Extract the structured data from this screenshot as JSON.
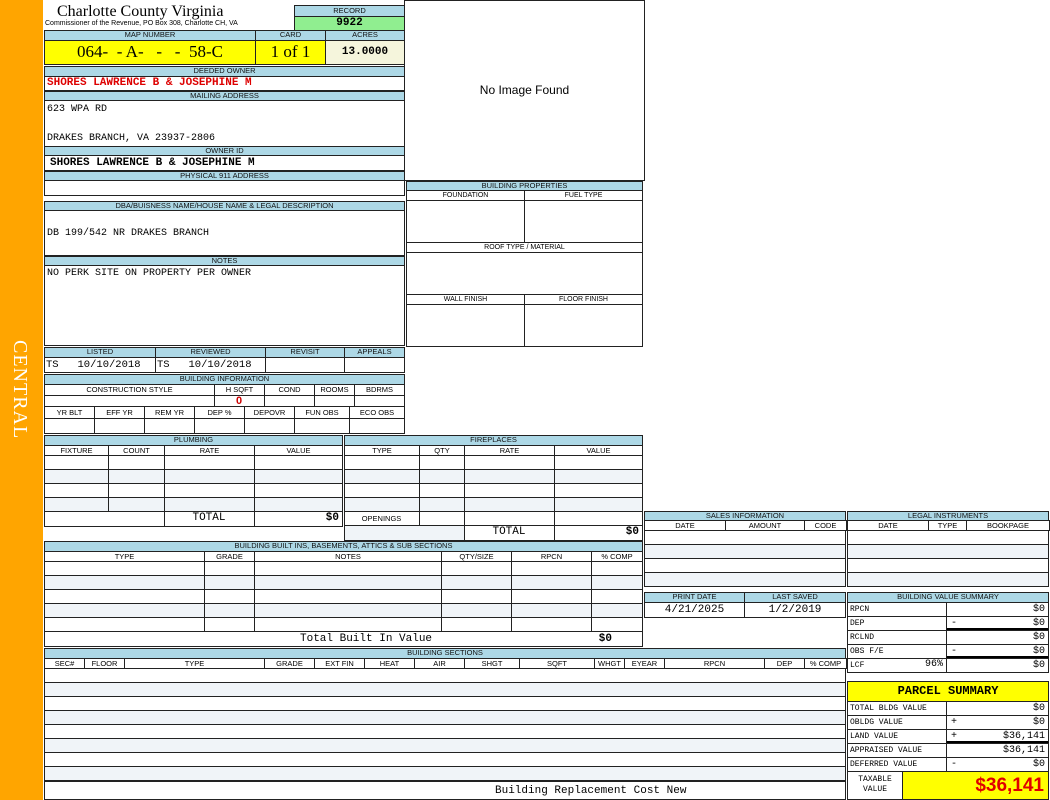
{
  "sidebar": {
    "label": "CENTRAL",
    "color": "#ffa500"
  },
  "header": {
    "title": "Charlotte County Virginia",
    "subtitle": "Commissioner of the Revenue, PO Box 308, Charlotte CH, VA"
  },
  "record": {
    "label": "RECORD",
    "value": "9922"
  },
  "photo": {
    "text": "No Image Found"
  },
  "map": {
    "label": "MAP NUMBER",
    "value": "064-  - A-   -   -  58-C",
    "card_label": "CARD",
    "card": "1 of 1",
    "acres_label": "ACRES",
    "acres": "13.0000"
  },
  "owner": {
    "deeded_label": "DEEDED OWNER",
    "deeded": "SHORES LAWRENCE B & JOSEPHINE M",
    "mailing_label": "MAILING ADDRESS",
    "address1": "623 WPA RD",
    "address2": "DRAKES BRANCH, VA 23937-2806",
    "owner_id_label": "OWNER ID",
    "owner_id": "SHORES LAWRENCE B & JOSEPHINE M",
    "physical_label": "PHYSICAL 911 ADDRESS",
    "physical": ""
  },
  "dba": {
    "label": "DBA/BUISNESS NAME/HOUSE NAME & LEGAL DESCRIPTION",
    "value": "DB 199/542 NR DRAKES BRANCH"
  },
  "notes": {
    "label": "NOTES",
    "value": "NO PERK SITE ON PROPERTY PER OWNER"
  },
  "building_properties": {
    "label": "BUILDING PROPERTIES",
    "foundation": "FOUNDATION",
    "fuel": "FUEL TYPE",
    "roof": "ROOF TYPE / MATERIAL",
    "wall": "WALL FINISH",
    "floor": "FLOOR FINISH"
  },
  "review": {
    "listed_label": "LISTED",
    "listed": "TS   10/10/2018",
    "reviewed_label": "REVIEWED",
    "reviewed": "TS   10/10/2018",
    "revisit_label": "REVISIT",
    "appeals_label": "APPEALS"
  },
  "building_info": {
    "label": "BUILDING INFORMATION",
    "row1": [
      "CONSTRUCTION STYLE",
      "H SQFT",
      "COND",
      "ROOMS",
      "BDRMS"
    ],
    "hsqft": "0",
    "row2": [
      "YR BLT",
      "EFF YR",
      "REM YR",
      "DEP %",
      "DEPOVR",
      "FUN OBS",
      "ECO OBS"
    ]
  },
  "plumbing": {
    "label": "PLUMBING",
    "cols": [
      "FIXTURE",
      "COUNT",
      "RATE",
      "VALUE"
    ],
    "total_label": "TOTAL",
    "total": "$0"
  },
  "fireplaces": {
    "label": "FIREPLACES",
    "cols": [
      "TYPE",
      "QTY",
      "RATE",
      "VALUE"
    ],
    "openings_label": "OPENINGS",
    "total_label": "TOTAL",
    "total": "$0"
  },
  "built_ins": {
    "label": "BUILDING BUILT INS, BASEMENTS, ATTICS & SUB SECTIONS",
    "cols": [
      "TYPE",
      "GRADE",
      "NOTES",
      "QTY/SIZE",
      "RPCN",
      "% COMP"
    ],
    "total_label": "Total Built In Value",
    "total": "$0"
  },
  "sections": {
    "label": "BUILDING SECTIONS",
    "cols": [
      "SEC#",
      "FLOOR",
      "TYPE",
      "GRADE",
      "EXT FIN",
      "HEAT",
      "AIR",
      "SHGT",
      "SQFT",
      "WHGT",
      "EYEAR",
      "RPCN",
      "DEP",
      "% COMP"
    ],
    "footer": "Building Replacement Cost New"
  },
  "sales": {
    "label": "SALES INFORMATION",
    "cols": [
      "DATE",
      "AMOUNT",
      "CODE"
    ]
  },
  "legal": {
    "label": "LEGAL INSTRUMENTS",
    "cols": [
      "DATE",
      "TYPE",
      "BOOKPAGE"
    ]
  },
  "dates": {
    "print_label": "PRINT DATE",
    "print": "4/21/2025",
    "saved_label": "LAST SAVED",
    "saved": "1/2/2019"
  },
  "value_summary": {
    "label": "BUILDING VALUE SUMMARY",
    "rows": [
      {
        "label": "RPCN",
        "sign": "",
        "value": "$0"
      },
      {
        "label": "DEP",
        "sign": "-",
        "value": "$0"
      },
      {
        "label": "RCLND",
        "sign": "",
        "value": "$0"
      },
      {
        "label": "OBS F/E",
        "sign": "-",
        "value": "$0"
      },
      {
        "label": "LCF",
        "extra": "96%",
        "sign": "",
        "value": "$0"
      }
    ]
  },
  "parcel_summary": {
    "label": "PARCEL SUMMARY",
    "rows": [
      {
        "label": "TOTAL BLDG VALUE",
        "sign": "",
        "value": "$0"
      },
      {
        "label": "OBLDG VALUE",
        "sign": "+",
        "value": "$0"
      },
      {
        "label": "LAND VALUE",
        "sign": "+",
        "value": "$36,141"
      },
      {
        "label": "APPRAISED VALUE",
        "sign": "",
        "value": "$36,141"
      },
      {
        "label": "DEFERRED VALUE",
        "sign": "-",
        "value": "$0"
      }
    ],
    "taxable_label": "TAXABLE VALUE",
    "taxable": "$36,141"
  },
  "colors": {
    "header": "#add8e6",
    "highlight": "#ffff00",
    "record": "#90ee90",
    "owner_text": "#dd0000"
  }
}
